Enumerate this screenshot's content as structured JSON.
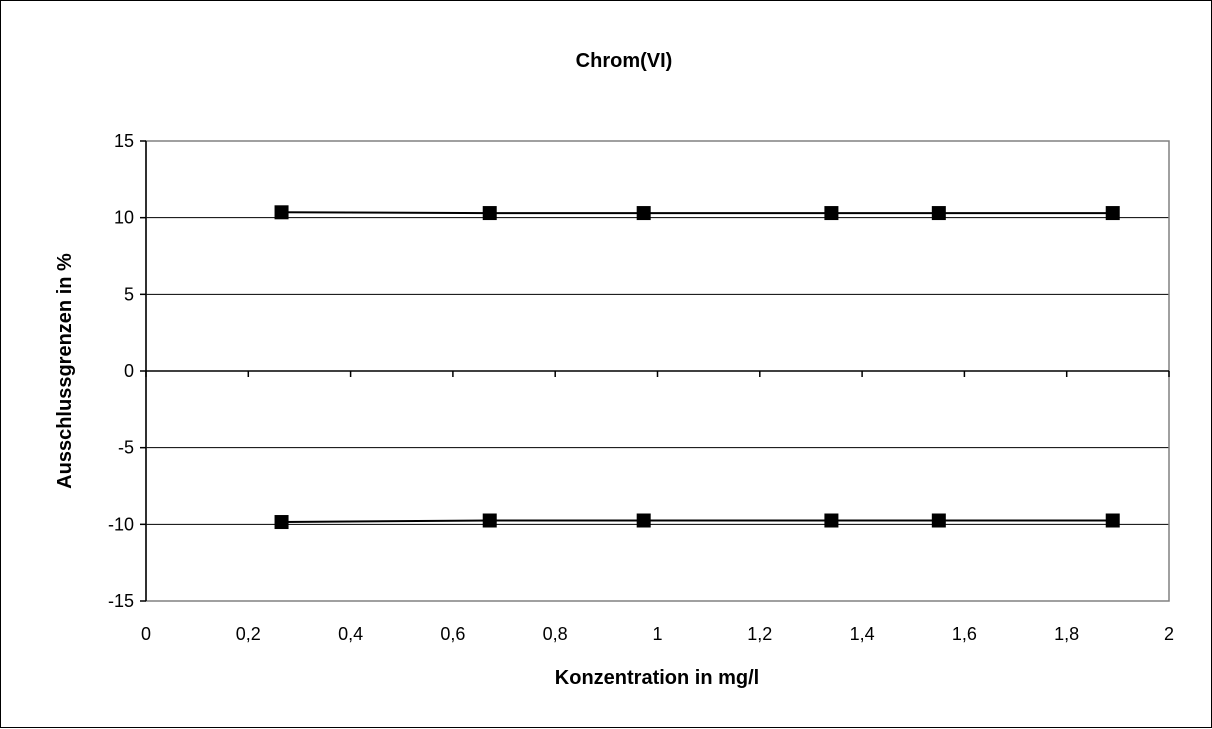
{
  "chart_data": {
    "type": "line",
    "title": "Chrom(VI)",
    "xlabel": "Konzentration in mg/l",
    "ylabel": "Ausschlussgrenzen in %",
    "xlim": [
      0,
      2
    ],
    "ylim": [
      -15,
      15
    ],
    "x_ticks": [
      0,
      0.2,
      0.4,
      0.6,
      0.8,
      1,
      1.2,
      1.4,
      1.6,
      1.8,
      2
    ],
    "x_tick_labels": [
      "0",
      "0,2",
      "0,4",
      "0,6",
      "0,8",
      "1",
      "1,2",
      "1,4",
      "1,6",
      "1,8",
      "2"
    ],
    "y_ticks": [
      -15,
      -10,
      -5,
      0,
      5,
      10,
      15
    ],
    "y_tick_labels": [
      "-15",
      "-10",
      "-5",
      "0",
      "5",
      "10",
      "15"
    ],
    "grid": "horizontal",
    "legend": "none",
    "colors": {
      "line": "#000000",
      "marker": "#000000",
      "plot_border": "#808080",
      "grid": "#000000"
    },
    "series": [
      {
        "x": [
          0.265,
          0.672,
          0.973,
          1.34,
          1.55,
          1.89
        ],
        "values": [
          10.35,
          10.3,
          10.3,
          10.3,
          10.3,
          10.3
        ]
      },
      {
        "x": [
          0.265,
          0.672,
          0.973,
          1.34,
          1.55,
          1.89
        ],
        "values": [
          -9.85,
          -9.75,
          -9.75,
          -9.75,
          -9.75,
          -9.75
        ]
      }
    ]
  }
}
